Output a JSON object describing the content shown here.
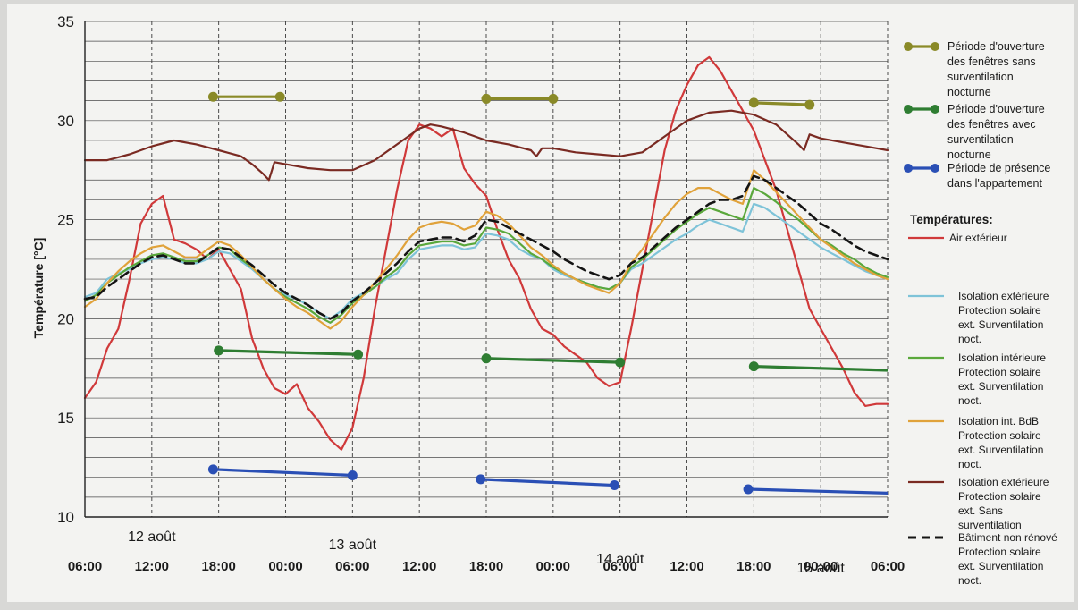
{
  "chart_data": {
    "type": "line",
    "ylabel": "Température [°C]",
    "ylim": [
      10,
      35
    ],
    "xlim": [
      0,
      72
    ],
    "grid": "on",
    "legend_position": "right",
    "y_ticks": [
      "10",
      "15",
      "20",
      "25",
      "30",
      "35"
    ],
    "x_tick_labels": [
      {
        "x": 0,
        "label": "06:00"
      },
      {
        "x": 6,
        "label": "12:00"
      },
      {
        "x": 12,
        "label": "18:00"
      },
      {
        "x": 18,
        "label": "00:00"
      },
      {
        "x": 24,
        "label": "06:00"
      },
      {
        "x": 30,
        "label": "12:00"
      },
      {
        "x": 36,
        "label": "18:00"
      },
      {
        "x": 42,
        "label": "00:00"
      },
      {
        "x": 48,
        "label": "06:00"
      },
      {
        "x": 54,
        "label": "12:00"
      },
      {
        "x": 60,
        "label": "18:00"
      },
      {
        "x": 66,
        "label": "00:00"
      },
      {
        "x": 72,
        "label": "06:00"
      }
    ],
    "day_labels": [
      {
        "x": 6,
        "label": "12 août"
      },
      {
        "x": 24,
        "label": "13 août"
      },
      {
        "x": 48,
        "label": "14 août"
      },
      {
        "x": 66,
        "label": "15 août"
      }
    ],
    "legend_heading": "Températures:",
    "period_legend": [
      {
        "label": "Période d'ouverture des fenêtres sans surventilation nocturne",
        "color": "#8a8a28"
      },
      {
        "label": "Période d'ouverture des fenêtres avec surventilation nocturne",
        "color": "#2e7d32"
      },
      {
        "label": "Période de présence dans l'appartement",
        "color": "#2a4fb5"
      }
    ],
    "periods": [
      {
        "kind": "sans",
        "color": "#8a8a28",
        "segments": [
          [
            11.5,
            31.2,
            17.5,
            31.2
          ],
          [
            36,
            31.1,
            42,
            31.1
          ],
          [
            60,
            30.9,
            65,
            30.8
          ]
        ]
      },
      {
        "kind": "avec",
        "color": "#2e7d32",
        "segments": [
          [
            12,
            18.4,
            24.5,
            18.2
          ],
          [
            36,
            18.0,
            48,
            17.8
          ],
          [
            60,
            17.6,
            72,
            17.4
          ]
        ]
      },
      {
        "kind": "presence",
        "color": "#2a4fb5",
        "segments": [
          [
            11.5,
            12.4,
            24,
            12.1
          ],
          [
            35.5,
            11.9,
            47.5,
            11.6
          ],
          [
            59.5,
            11.4,
            72,
            11.2
          ]
        ]
      }
    ],
    "series": [
      {
        "name": "Air extérieur",
        "color": "#d0393a",
        "dashed": false,
        "x": [
          0,
          1,
          2,
          3,
          4,
          5,
          6,
          7,
          8,
          9,
          10,
          11,
          12,
          13,
          14,
          15,
          16,
          17,
          18,
          19,
          20,
          21,
          22,
          23,
          24,
          25,
          26,
          27,
          28,
          29,
          30,
          31,
          32,
          33,
          34,
          35,
          36,
          37,
          38,
          39,
          40,
          41,
          42,
          43,
          44,
          45,
          46,
          47,
          48,
          49,
          50,
          51,
          52,
          53,
          54,
          55,
          56,
          57,
          58,
          59,
          60,
          61,
          62,
          63,
          64,
          65,
          66,
          67,
          68,
          69,
          70,
          71,
          72
        ],
        "values": [
          16,
          16.8,
          18.5,
          19.5,
          22,
          24.8,
          25.8,
          26.2,
          24,
          23.8,
          23.5,
          23.0,
          23.5,
          22.5,
          21.5,
          19,
          17.5,
          16.5,
          16.2,
          16.7,
          15.5,
          14.8,
          13.9,
          13.4,
          14.5,
          17,
          20.5,
          23.5,
          26.5,
          29,
          29.8,
          29.6,
          29.2,
          29.6,
          27.6,
          26.8,
          26.2,
          24.5,
          23,
          22,
          20.5,
          19.5,
          19.2,
          18.6,
          18.2,
          17.8,
          17.0,
          16.6,
          16.8,
          19.5,
          22.5,
          25.5,
          28.5,
          30.5,
          31.8,
          32.8,
          33.2,
          32.5,
          31.5,
          30.5,
          29.5,
          28.0,
          26.5,
          24.5,
          22.5,
          20.5,
          19.5,
          18.5,
          17.5,
          16.3,
          15.6,
          15.7,
          15.7
        ]
      },
      {
        "name": "Isolation extérieure Protection solaire ext. Surventilation noct.",
        "color": "#7ec3d8",
        "dashed": false,
        "x": [
          0,
          1,
          2,
          3,
          4,
          5,
          6,
          7,
          8,
          9,
          10,
          11,
          12,
          13,
          14,
          15,
          16,
          17,
          18,
          19,
          20,
          21,
          22,
          23,
          24,
          25,
          26,
          27,
          28,
          29,
          30,
          31,
          32,
          33,
          34,
          35,
          36,
          37,
          38,
          39,
          40,
          41,
          42,
          43,
          44,
          45,
          46,
          47,
          48,
          49,
          50,
          51,
          52,
          53,
          54,
          55,
          56,
          57,
          58,
          59,
          60,
          61,
          62,
          63,
          64,
          65,
          66,
          67,
          68,
          69,
          70,
          71,
          72
        ],
        "values": [
          21.1,
          21.3,
          22.0,
          22.3,
          22.5,
          22.8,
          23.0,
          23.1,
          23.0,
          22.8,
          22.8,
          23.0,
          23.4,
          23.3,
          22.9,
          22.5,
          22.0,
          21.5,
          21.2,
          21.0,
          20.7,
          20.3,
          20.0,
          20.4,
          21.0,
          21.3,
          21.6,
          22.0,
          22.3,
          23.0,
          23.5,
          23.6,
          23.7,
          23.7,
          23.5,
          23.6,
          24.3,
          24.2,
          24.0,
          23.5,
          23.2,
          23.0,
          22.5,
          22.2,
          22.0,
          21.8,
          21.6,
          21.5,
          21.8,
          22.5,
          22.8,
          23.2,
          23.6,
          24.0,
          24.3,
          24.7,
          25.0,
          24.8,
          24.6,
          24.4,
          25.8,
          25.6,
          25.2,
          24.8,
          24.4,
          24.0,
          23.6,
          23.3,
          23.0,
          22.7,
          22.4,
          22.2,
          22.0
        ]
      },
      {
        "name": "Isolation intérieure Protection solaire ext. Surventilation noct.",
        "color": "#5aa83c",
        "dashed": false,
        "x": [
          0,
          1,
          2,
          3,
          4,
          5,
          6,
          7,
          8,
          9,
          10,
          11,
          12,
          13,
          14,
          15,
          16,
          17,
          18,
          19,
          20,
          21,
          22,
          23,
          24,
          25,
          26,
          27,
          28,
          29,
          30,
          31,
          32,
          33,
          34,
          35,
          36,
          37,
          38,
          39,
          40,
          41,
          42,
          43,
          44,
          45,
          46,
          47,
          48,
          49,
          50,
          51,
          52,
          53,
          54,
          55,
          56,
          57,
          58,
          59,
          60,
          61,
          62,
          63,
          64,
          65,
          66,
          67,
          68,
          69,
          70,
          71,
          72
        ],
        "values": [
          20.9,
          21.2,
          21.8,
          22.2,
          22.6,
          22.9,
          23.2,
          23.3,
          23.1,
          22.9,
          22.9,
          23.2,
          23.6,
          23.5,
          23.0,
          22.6,
          22.0,
          21.5,
          21.1,
          20.8,
          20.5,
          20.1,
          19.8,
          20.2,
          20.8,
          21.2,
          21.6,
          22.1,
          22.5,
          23.2,
          23.7,
          23.8,
          23.9,
          23.9,
          23.7,
          23.8,
          24.6,
          24.5,
          24.3,
          23.8,
          23.3,
          23.0,
          22.6,
          22.3,
          22.0,
          21.8,
          21.6,
          21.5,
          21.8,
          22.6,
          23.0,
          23.5,
          24.0,
          24.5,
          24.9,
          25.3,
          25.6,
          25.4,
          25.2,
          25.0,
          26.6,
          26.3,
          25.9,
          25.4,
          25.0,
          24.5,
          24.0,
          23.7,
          23.3,
          23.0,
          22.6,
          22.3,
          22.1
        ]
      },
      {
        "name": "Isolation int. BdB Protection solaire ext. Surventilation noct.",
        "color": "#e0a23a",
        "dashed": false,
        "x": [
          0,
          1,
          2,
          3,
          4,
          5,
          6,
          7,
          8,
          9,
          10,
          11,
          12,
          13,
          14,
          15,
          16,
          17,
          18,
          19,
          20,
          21,
          22,
          23,
          24,
          25,
          26,
          27,
          28,
          29,
          30,
          31,
          32,
          33,
          34,
          35,
          36,
          37,
          38,
          39,
          40,
          41,
          42,
          43,
          44,
          45,
          46,
          47,
          48,
          49,
          50,
          51,
          52,
          53,
          54,
          55,
          56,
          57,
          58,
          59,
          60,
          61,
          62,
          63,
          64,
          65,
          66,
          67,
          68,
          69,
          70,
          71,
          72
        ],
        "values": [
          20.6,
          21.0,
          21.8,
          22.4,
          22.9,
          23.3,
          23.6,
          23.7,
          23.4,
          23.1,
          23.1,
          23.5,
          23.9,
          23.7,
          23.2,
          22.6,
          22.0,
          21.5,
          21.0,
          20.6,
          20.3,
          19.9,
          19.5,
          19.9,
          20.6,
          21.2,
          21.8,
          22.5,
          23.2,
          24.0,
          24.6,
          24.8,
          24.9,
          24.8,
          24.5,
          24.7,
          25.4,
          25.2,
          24.8,
          24.2,
          23.6,
          23.2,
          22.7,
          22.3,
          22.0,
          21.7,
          21.5,
          21.3,
          21.8,
          22.8,
          23.5,
          24.3,
          25.1,
          25.8,
          26.3,
          26.6,
          26.6,
          26.3,
          26.0,
          25.8,
          27.5,
          27.0,
          26.4,
          25.8,
          25.2,
          24.6,
          24.0,
          23.6,
          23.2,
          22.8,
          22.5,
          22.2,
          22.0
        ]
      },
      {
        "name": "Isolation extérieure Protection solaire ext. Sans surventilation",
        "color": "#7a2a22",
        "dashed": false,
        "x": [
          0,
          2,
          4,
          6,
          8,
          10,
          12,
          14,
          15,
          16,
          16.5,
          17,
          18,
          20,
          22,
          24,
          26,
          28,
          30,
          31,
          32,
          34,
          36,
          38,
          40,
          40.5,
          41,
          42,
          44,
          46,
          48,
          50,
          52,
          54,
          56,
          58,
          60,
          62,
          64,
          64.5,
          65,
          66,
          68,
          70,
          72
        ],
        "values": [
          28.0,
          28.0,
          28.3,
          28.7,
          29.0,
          28.8,
          28.5,
          28.2,
          27.8,
          27.3,
          27.0,
          27.9,
          27.8,
          27.6,
          27.5,
          27.5,
          28.0,
          28.8,
          29.6,
          29.8,
          29.7,
          29.4,
          29.0,
          28.8,
          28.5,
          28.2,
          28.6,
          28.6,
          28.4,
          28.3,
          28.2,
          28.4,
          29.2,
          30.0,
          30.4,
          30.5,
          30.3,
          29.8,
          28.8,
          28.5,
          29.3,
          29.1,
          28.9,
          28.7,
          28.5
        ]
      },
      {
        "name": "Bâtiment non rénové Protection solaire ext. Surventilation noct.",
        "color": "#141414",
        "dashed": true,
        "x": [
          0,
          1,
          2,
          3,
          4,
          5,
          6,
          7,
          8,
          9,
          10,
          11,
          12,
          13,
          14,
          15,
          16,
          17,
          18,
          19,
          20,
          21,
          22,
          23,
          24,
          25,
          26,
          27,
          28,
          29,
          30,
          31,
          32,
          33,
          34,
          35,
          36,
          37,
          38,
          39,
          40,
          41,
          42,
          43,
          44,
          45,
          46,
          47,
          48,
          49,
          50,
          51,
          52,
          53,
          54,
          55,
          56,
          57,
          58,
          59,
          60,
          61,
          62,
          63,
          64,
          65,
          66,
          67,
          68,
          69,
          70,
          71,
          72
        ],
        "values": [
          21.0,
          21.1,
          21.6,
          22.0,
          22.4,
          22.8,
          23.1,
          23.2,
          23.0,
          22.8,
          22.8,
          23.2,
          23.6,
          23.5,
          23.1,
          22.7,
          22.2,
          21.7,
          21.3,
          21.0,
          20.7,
          20.3,
          20.0,
          20.3,
          20.9,
          21.3,
          21.8,
          22.3,
          22.8,
          23.4,
          23.9,
          24.0,
          24.1,
          24.1,
          23.9,
          24.2,
          25.0,
          24.9,
          24.6,
          24.3,
          24.0,
          23.7,
          23.4,
          23.0,
          22.7,
          22.4,
          22.2,
          22.0,
          22.2,
          22.8,
          23.1,
          23.6,
          24.1,
          24.6,
          25.0,
          25.4,
          25.8,
          26.0,
          26.0,
          26.2,
          27.2,
          27.0,
          26.6,
          26.2,
          25.8,
          25.3,
          24.8,
          24.5,
          24.1,
          23.7,
          23.4,
          23.2,
          23.0
        ]
      }
    ]
  }
}
